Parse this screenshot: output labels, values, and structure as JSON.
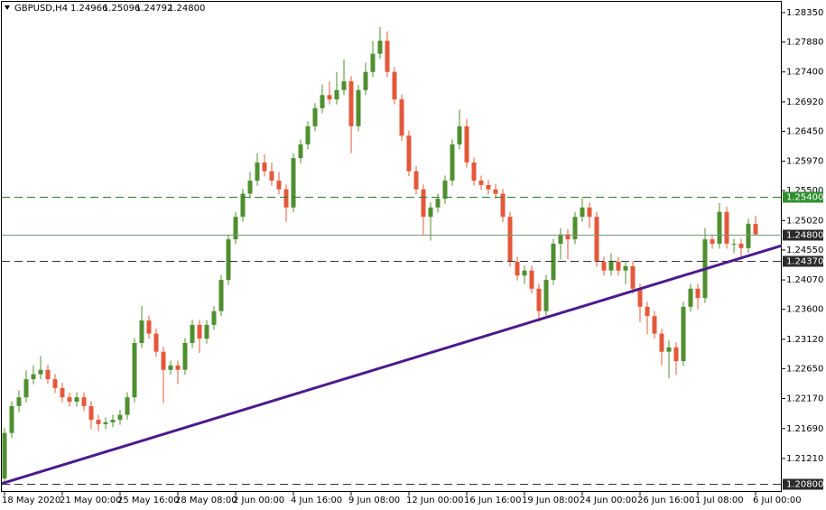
{
  "chart_data": {
    "type": "candlestick",
    "symbol": "GBPUSD,H4",
    "header_prices": [
      "1.24966",
      "1.25096",
      "1.24792",
      "1.24800"
    ],
    "up_color": "#4f8f2f",
    "down_color": "#e4583a",
    "ylim": [
      1.20675,
      1.28552
    ],
    "yticks": [
      {
        "value": 1.2835,
        "label": "1.28350"
      },
      {
        "value": 1.2788,
        "label": "1.27880"
      },
      {
        "value": 1.274,
        "label": "1.27400"
      },
      {
        "value": 1.2692,
        "label": "1.26920"
      },
      {
        "value": 1.2645,
        "label": "1.26450"
      },
      {
        "value": 1.2597,
        "label": "1.25970"
      },
      {
        "value": 1.255,
        "label": "1.25500"
      },
      {
        "value": 1.2502,
        "label": "1.25020"
      },
      {
        "value": 1.2455,
        "label": "1.24550"
      },
      {
        "value": 1.2407,
        "label": "1.24070"
      },
      {
        "value": 1.236,
        "label": "1.23600"
      },
      {
        "value": 1.2312,
        "label": "1.23120"
      },
      {
        "value": 1.2265,
        "label": "1.22650"
      },
      {
        "value": 1.2217,
        "label": "1.22170"
      },
      {
        "value": 1.2169,
        "label": "1.21690"
      },
      {
        "value": 1.2121,
        "label": "1.21210"
      }
    ],
    "xticks": [
      {
        "value": 0,
        "label": "18 May 2020"
      },
      {
        "value": 8,
        "label": "21 May 00:00"
      },
      {
        "value": 16,
        "label": "25 May 16:00"
      },
      {
        "value": 24,
        "label": "28 May 08:00"
      },
      {
        "value": 32,
        "label": "2 Jun 00:00"
      },
      {
        "value": 40,
        "label": "4 Jun 16:00"
      },
      {
        "value": 48,
        "label": "9 Jun 08:00"
      },
      {
        "value": 56,
        "label": "12 Jun 00:00"
      },
      {
        "value": 64,
        "label": "16 Jun 16:00"
      },
      {
        "value": 72,
        "label": "19 Jun 08:00"
      },
      {
        "value": 80,
        "label": "24 Jun 00:00"
      },
      {
        "value": 88,
        "label": "26 Jun 16:00"
      },
      {
        "value": 96,
        "label": "1 Jul 08:00"
      },
      {
        "value": 104,
        "label": "6 Jul 00:00"
      }
    ],
    "levels": [
      {
        "value": 1.254,
        "label": "1.25400",
        "color": "#2a7a2a",
        "label_color": "#2f8f2f",
        "dashed": true
      },
      {
        "value": 1.248,
        "label": "1.24800",
        "color": "#7a967a",
        "label_color": "#2b2b2b",
        "dashed": false
      },
      {
        "value": 1.2437,
        "label": "1.24370",
        "color": "#333333",
        "label_color": "#2b2b2b",
        "dashed": true
      },
      {
        "value": 1.208,
        "label": "1.20800",
        "color": "#333333",
        "label_color": "#2b2b2b",
        "dashed": true
      }
    ],
    "trendline": {
      "color": "#4b1a8c",
      "values": [
        1.2081,
        1.2462
      ]
    },
    "ohlc": [
      [
        1.2089,
        1.217,
        1.2081,
        1.2162
      ],
      [
        1.2162,
        1.2213,
        1.2154,
        1.2205
      ],
      [
        1.2205,
        1.223,
        1.2195,
        1.2219
      ],
      [
        1.2219,
        1.2262,
        1.2211,
        1.2248
      ],
      [
        1.2248,
        1.227,
        1.224,
        1.2256
      ],
      [
        1.2256,
        1.2285,
        1.2248,
        1.2263
      ],
      [
        1.2263,
        1.2271,
        1.224,
        1.2248
      ],
      [
        1.2248,
        1.2256,
        1.2226,
        1.2234
      ],
      [
        1.2234,
        1.2242,
        1.2211,
        1.2219
      ],
      [
        1.2219,
        1.2227,
        1.2204,
        1.2212
      ],
      [
        1.2212,
        1.2227,
        1.2204,
        1.2219
      ],
      [
        1.2219,
        1.2227,
        1.2197,
        1.2205
      ],
      [
        1.2205,
        1.2213,
        1.2168,
        1.2183
      ],
      [
        1.2183,
        1.2191,
        1.2165,
        1.2176
      ],
      [
        1.2176,
        1.2187,
        1.2168,
        1.2179
      ],
      [
        1.2179,
        1.2191,
        1.2171,
        1.2183
      ],
      [
        1.2183,
        1.2199,
        1.2175,
        1.2191
      ],
      [
        1.2191,
        1.2227,
        1.2183,
        1.2219
      ],
      [
        1.2219,
        1.2314,
        1.2211,
        1.2306
      ],
      [
        1.2306,
        1.2365,
        1.2298,
        1.2342
      ],
      [
        1.2342,
        1.235,
        1.2313,
        1.2321
      ],
      [
        1.2321,
        1.2329,
        1.2284,
        1.2292
      ],
      [
        1.2292,
        1.23,
        1.221,
        1.2263
      ],
      [
        1.2263,
        1.2278,
        1.2255,
        1.227
      ],
      [
        1.227,
        1.2278,
        1.224,
        1.2263
      ],
      [
        1.2263,
        1.2314,
        1.2255,
        1.2306
      ],
      [
        1.2306,
        1.2343,
        1.2298,
        1.2335
      ],
      [
        1.2335,
        1.2343,
        1.229,
        1.2313
      ],
      [
        1.2313,
        1.2343,
        1.2305,
        1.2335
      ],
      [
        1.2335,
        1.2365,
        1.2327,
        1.2357
      ],
      [
        1.2357,
        1.2415,
        1.2349,
        1.2407
      ],
      [
        1.2407,
        1.248,
        1.2399,
        1.2472
      ],
      [
        1.2472,
        1.2516,
        1.2464,
        1.2508
      ],
      [
        1.2508,
        1.2553,
        1.25,
        1.2545
      ],
      [
        1.2545,
        1.258,
        1.2537,
        1.2566
      ],
      [
        1.2566,
        1.261,
        1.2558,
        1.2595
      ],
      [
        1.2595,
        1.2608,
        1.2573,
        1.2581
      ],
      [
        1.2581,
        1.2595,
        1.2558,
        1.2566
      ],
      [
        1.2566,
        1.258,
        1.2544,
        1.2552
      ],
      [
        1.2552,
        1.256,
        1.25,
        1.2523
      ],
      [
        1.2523,
        1.261,
        1.2515,
        1.2602
      ],
      [
        1.2602,
        1.2632,
        1.2594,
        1.2624
      ],
      [
        1.2624,
        1.2661,
        1.2616,
        1.2653
      ],
      [
        1.2653,
        1.269,
        1.2645,
        1.2682
      ],
      [
        1.2682,
        1.272,
        1.2674,
        1.2703
      ],
      [
        1.2703,
        1.2725,
        1.2688,
        1.2696
      ],
      [
        1.2696,
        1.274,
        1.2688,
        1.2711
      ],
      [
        1.2711,
        1.276,
        1.2703,
        1.2725
      ],
      [
        1.2725,
        1.2733,
        1.261,
        1.2653
      ],
      [
        1.2653,
        1.2719,
        1.2645,
        1.2711
      ],
      [
        1.2711,
        1.2755,
        1.2703,
        1.274
      ],
      [
        1.274,
        1.279,
        1.2732,
        1.2769
      ],
      [
        1.2769,
        1.2812,
        1.2761,
        1.279
      ],
      [
        1.279,
        1.2805,
        1.2732,
        1.274
      ],
      [
        1.274,
        1.2748,
        1.2688,
        1.2696
      ],
      [
        1.2696,
        1.2704,
        1.263,
        1.2638
      ],
      [
        1.2638,
        1.2646,
        1.2573,
        1.2581
      ],
      [
        1.2581,
        1.2589,
        1.2544,
        1.2552
      ],
      [
        1.2552,
        1.256,
        1.248,
        1.2508
      ],
      [
        1.2508,
        1.2531,
        1.247,
        1.2523
      ],
      [
        1.2523,
        1.2545,
        1.2515,
        1.2537
      ],
      [
        1.2537,
        1.2574,
        1.2529,
        1.2566
      ],
      [
        1.2566,
        1.2632,
        1.2558,
        1.2624
      ],
      [
        1.2624,
        1.268,
        1.2616,
        1.2653
      ],
      [
        1.2653,
        1.2665,
        1.2587,
        1.2595
      ],
      [
        1.2595,
        1.2603,
        1.2558,
        1.2566
      ],
      [
        1.2566,
        1.2574,
        1.2551,
        1.2559
      ],
      [
        1.2559,
        1.2567,
        1.2544,
        1.2552
      ],
      [
        1.2552,
        1.256,
        1.2537,
        1.2545
      ],
      [
        1.2545,
        1.2553,
        1.25,
        1.2508
      ],
      [
        1.2508,
        1.2516,
        1.2428,
        1.2436
      ],
      [
        1.2436,
        1.2444,
        1.2406,
        1.2414
      ],
      [
        1.2414,
        1.243,
        1.24,
        1.2422
      ],
      [
        1.2422,
        1.243,
        1.2385,
        1.2393
      ],
      [
        1.2393,
        1.2401,
        1.234,
        1.2357
      ],
      [
        1.2357,
        1.2415,
        1.2349,
        1.2407
      ],
      [
        1.2407,
        1.2473,
        1.2399,
        1.2465
      ],
      [
        1.2465,
        1.249,
        1.244,
        1.248
      ],
      [
        1.248,
        1.2488,
        1.244,
        1.2472
      ],
      [
        1.2472,
        1.2516,
        1.2464,
        1.2508
      ],
      [
        1.2508,
        1.254,
        1.25,
        1.2523
      ],
      [
        1.2523,
        1.2531,
        1.249,
        1.2508
      ],
      [
        1.2508,
        1.2516,
        1.2428,
        1.2436
      ],
      [
        1.2436,
        1.2444,
        1.2414,
        1.2422
      ],
      [
        1.2422,
        1.245,
        1.2414,
        1.2436
      ],
      [
        1.2436,
        1.2444,
        1.2414,
        1.2422
      ],
      [
        1.2422,
        1.2437,
        1.24,
        1.2429
      ],
      [
        1.2429,
        1.2437,
        1.2385,
        1.2393
      ],
      [
        1.2393,
        1.2401,
        1.234,
        1.2364
      ],
      [
        1.2364,
        1.2372,
        1.232,
        1.2349
      ],
      [
        1.2349,
        1.2357,
        1.2313,
        1.2321
      ],
      [
        1.2321,
        1.2329,
        1.227,
        1.2292
      ],
      [
        1.2292,
        1.231,
        1.225,
        1.2299
      ],
      [
        1.2299,
        1.2307,
        1.2255,
        1.2277
      ],
      [
        1.2277,
        1.2372,
        1.2269,
        1.2364
      ],
      [
        1.2364,
        1.2401,
        1.2356,
        1.2393
      ],
      [
        1.2393,
        1.2401,
        1.236,
        1.2378
      ],
      [
        1.2378,
        1.249,
        1.237,
        1.2472
      ],
      [
        1.2472,
        1.248,
        1.2457,
        1.2465
      ],
      [
        1.2465,
        1.253,
        1.2457,
        1.2516
      ],
      [
        1.2516,
        1.2524,
        1.2457,
        1.2465
      ],
      [
        1.2465,
        1.2473,
        1.245,
        1.2465
      ],
      [
        1.2465,
        1.2473,
        1.244,
        1.2458
      ],
      [
        1.2458,
        1.2505,
        1.245,
        1.2497
      ],
      [
        1.24966,
        1.25096,
        1.24792,
        1.248
      ]
    ]
  }
}
